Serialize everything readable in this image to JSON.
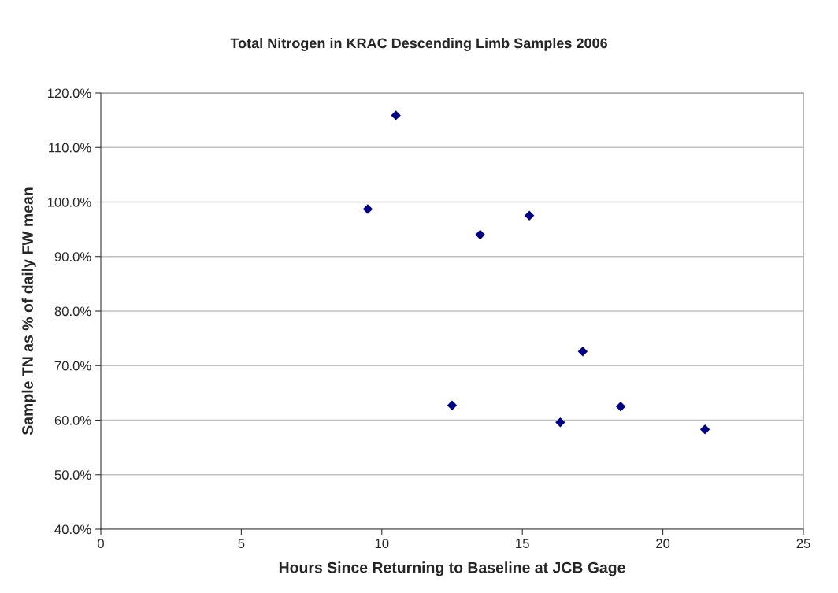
{
  "chart_data": {
    "type": "scatter",
    "title": "Total Nitrogen in KRAC Descending Limb Samples 2006",
    "xlabel": "Hours Since Returning to Baseline at JCB Gage",
    "ylabel": "Sample TN as % of daily FW mean",
    "series": [
      {
        "color": "#000080",
        "x": [
          9.5,
          10.5,
          12.5,
          13.5,
          15.25,
          16.35,
          17.15,
          18.5,
          21.5
        ],
        "values": [
          98.7,
          115.9,
          62.7,
          94.0,
          97.5,
          59.6,
          72.6,
          62.5,
          58.3
        ]
      }
    ],
    "xlim": [
      0,
      25
    ],
    "xticks": [
      0,
      5,
      10,
      15,
      20,
      25
    ],
    "ylim": [
      40,
      120
    ],
    "yticks": [
      {
        "value": 40,
        "label": "40.0%"
      },
      {
        "value": 50,
        "label": "50.0%"
      },
      {
        "value": 60,
        "label": "60.0%"
      },
      {
        "value": 70,
        "label": "70.0%"
      },
      {
        "value": 80,
        "label": "80.0%"
      },
      {
        "value": 90,
        "label": "90.0%"
      },
      {
        "value": 100,
        "label": "100.0%"
      },
      {
        "value": 110,
        "label": "110.0%"
      },
      {
        "value": 120,
        "label": "120.0%"
      }
    ],
    "grid": "y",
    "marker": "diamond"
  }
}
